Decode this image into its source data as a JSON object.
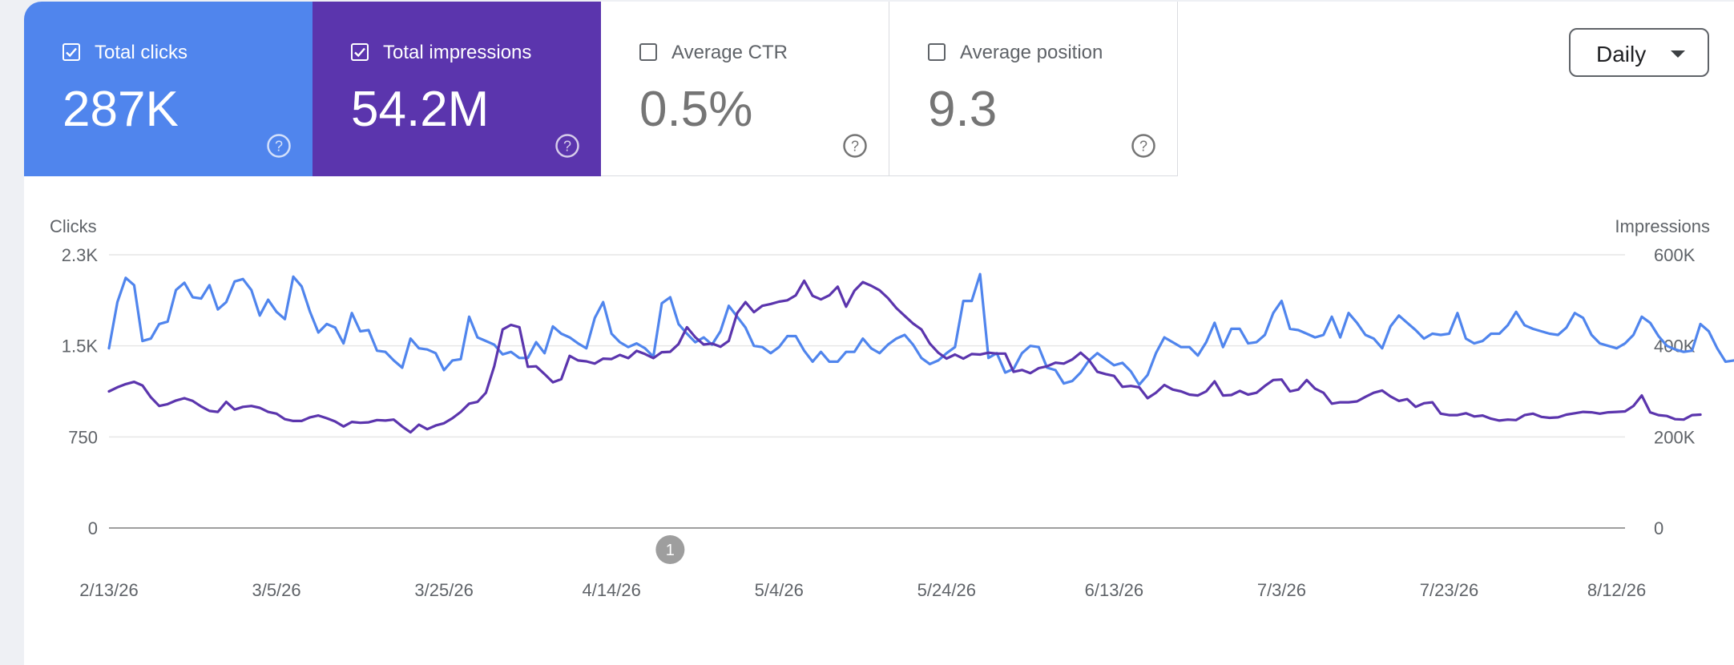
{
  "cards": [
    {
      "label": "Total clicks",
      "value": "287K",
      "checked": true
    },
    {
      "label": "Total impressions",
      "value": "54.2M",
      "checked": true
    },
    {
      "label": "Average CTR",
      "value": "0.5%",
      "checked": false
    },
    {
      "label": "Average position",
      "value": "9.3",
      "checked": false
    }
  ],
  "icons": {
    "checkbox": "checkbox-icon",
    "help": "help-circle-icon",
    "dropdown": "caret-down-icon"
  },
  "period_select": {
    "value": "Daily"
  },
  "colors": {
    "clicks": "#5085ed",
    "impressions": "#5b35ad",
    "grid": "#e6e6e6",
    "axis": "#5f6368"
  },
  "chart_data": {
    "type": "line",
    "xlabel": "",
    "y_left": {
      "label": "Clicks",
      "ticks": [
        "0",
        "750",
        "1.5K",
        "2.3K"
      ],
      "range": [
        0,
        2250
      ]
    },
    "y_right": {
      "label": "Impressions",
      "ticks": [
        "0",
        "200K",
        "400K",
        "600K"
      ],
      "range": [
        0,
        600000
      ]
    },
    "x_ticks": [
      "2/13/26",
      "3/5/26",
      "3/25/26",
      "4/14/26",
      "5/4/26",
      "5/24/26",
      "6/13/26",
      "7/3/26",
      "7/23/26",
      "8/12/26"
    ],
    "x_range": [
      "2026-02-13",
      "2026-08-13"
    ],
    "annotation": {
      "label": "1",
      "date": "2026-04-21"
    },
    "series": [
      {
        "name": "Total clicks",
        "axis": "left",
        "color": "#5085ed",
        "values": [
          1480,
          1860,
          2060,
          2000,
          1540,
          1560,
          1680,
          1700,
          1960,
          2020,
          1900,
          1890,
          2000,
          1800,
          1860,
          2030,
          2050,
          1960,
          1750,
          1880,
          1780,
          1720,
          2070,
          1990,
          1780,
          1610,
          1680,
          1650,
          1520,
          1770,
          1620,
          1630,
          1460,
          1450,
          1380,
          1320,
          1560,
          1480,
          1470,
          1440,
          1300,
          1380,
          1390,
          1740,
          1570,
          1540,
          1510,
          1430,
          1450,
          1400,
          1400,
          1530,
          1440,
          1660,
          1600,
          1570,
          1520,
          1480,
          1730,
          1860,
          1600,
          1530,
          1490,
          1520,
          1480,
          1410,
          1850,
          1900,
          1680,
          1600,
          1530,
          1570,
          1510,
          1620,
          1830,
          1740,
          1650,
          1500,
          1490,
          1440,
          1490,
          1580,
          1580,
          1460,
          1370,
          1450,
          1370,
          1370,
          1450,
          1450,
          1560,
          1480,
          1440,
          1510,
          1560,
          1590,
          1510,
          1400,
          1350,
          1380,
          1440,
          1490,
          1870,
          1870,
          2090,
          1400,
          1440,
          1280,
          1310,
          1440,
          1500,
          1490,
          1320,
          1300,
          1190,
          1210,
          1280,
          1380,
          1440,
          1390,
          1340,
          1360,
          1290,
          1180,
          1260,
          1440,
          1570,
          1530,
          1490,
          1490,
          1420,
          1530,
          1690,
          1490,
          1640,
          1640,
          1520,
          1530,
          1590,
          1770,
          1870,
          1640,
          1630,
          1600,
          1570,
          1590,
          1740,
          1570,
          1770,
          1690,
          1590,
          1560,
          1480,
          1660,
          1750,
          1690,
          1630,
          1560,
          1600,
          1590,
          1600,
          1770,
          1560,
          1520,
          1540,
          1600,
          1600,
          1670,
          1780,
          1670,
          1640,
          1620,
          1600,
          1590,
          1650,
          1770,
          1730,
          1590,
          1520,
          1500,
          1480,
          1520,
          1590,
          1740,
          1690,
          1580,
          1500,
          1470,
          1450,
          1460,
          1680,
          1620,
          1480,
          1370,
          1380
        ]
      },
      {
        "name": "Total impressions",
        "axis": "right",
        "color": "#5b35ad",
        "values": [
          300000,
          309000,
          316000,
          321000,
          313000,
          287000,
          268000,
          272000,
          280000,
          285000,
          279000,
          267000,
          257000,
          255000,
          277000,
          260000,
          266000,
          268000,
          264000,
          255000,
          251000,
          239000,
          235000,
          235000,
          243000,
          247000,
          241000,
          234000,
          223000,
          233000,
          231000,
          232000,
          237000,
          236000,
          238000,
          223000,
          210000,
          227000,
          217000,
          225000,
          230000,
          241000,
          255000,
          273000,
          277000,
          297000,
          355000,
          436000,
          446000,
          441000,
          354000,
          355000,
          338000,
          320000,
          327000,
          378000,
          368000,
          366000,
          361000,
          372000,
          371000,
          380000,
          373000,
          389000,
          382000,
          373000,
          386000,
          387000,
          404000,
          441000,
          419000,
          403000,
          405000,
          398000,
          411000,
          472000,
          496000,
          474000,
          488000,
          492000,
          497000,
          500000,
          511000,
          543000,
          510000,
          502000,
          511000,
          530000,
          486000,
          521000,
          540000,
          532000,
          522000,
          505000,
          483000,
          466000,
          449000,
          436000,
          405000,
          385000,
          372000,
          381000,
          372000,
          382000,
          381000,
          385000,
          383000,
          383000,
          343000,
          347000,
          340000,
          351000,
          355000,
          363000,
          361000,
          370000,
          385000,
          369000,
          343000,
          338000,
          334000,
          310000,
          312000,
          309000,
          285000,
          297000,
          314000,
          304000,
          300000,
          293000,
          291000,
          300000,
          322000,
          291000,
          292000,
          301000,
          293000,
          297000,
          312000,
          325000,
          326000,
          300000,
          304000,
          325000,
          306000,
          297000,
          273000,
          276000,
          276000,
          278000,
          288000,
          297000,
          302000,
          289000,
          279000,
          283000,
          266000,
          274000,
          276000,
          251000,
          248000,
          248000,
          252000,
          245000,
          247000,
          240000,
          236000,
          238000,
          237000,
          248000,
          251000,
          244000,
          242000,
          243000,
          249000,
          252000,
          255000,
          254000,
          251000,
          254000,
          255000,
          256000,
          268000,
          291000,
          254000,
          248000,
          246000,
          239000,
          238000,
          248000,
          249000
        ]
      }
    ]
  }
}
